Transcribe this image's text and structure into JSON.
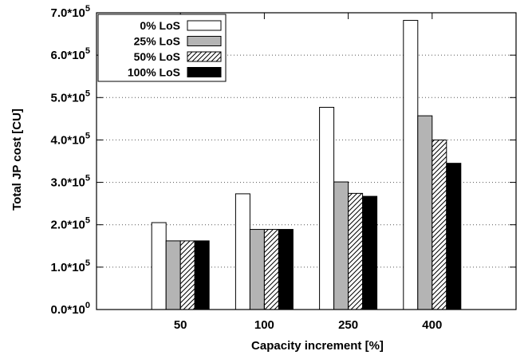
{
  "chart_data": {
    "type": "bar",
    "title": "",
    "xlabel": "Capacity increment [%]",
    "ylabel": "Total JP cost [CU]",
    "categories": [
      "50",
      "100",
      "250",
      "400"
    ],
    "ylim": [
      0,
      700000
    ],
    "yticks": [
      {
        "value": 0,
        "mantissa": "0.0",
        "exp": "0"
      },
      {
        "value": 100000,
        "mantissa": "1.0",
        "exp": "5"
      },
      {
        "value": 200000,
        "mantissa": "2.0",
        "exp": "5"
      },
      {
        "value": 300000,
        "mantissa": "3.0",
        "exp": "5"
      },
      {
        "value": 400000,
        "mantissa": "4.0",
        "exp": "5"
      },
      {
        "value": 500000,
        "mantissa": "5.0",
        "exp": "5"
      },
      {
        "value": 600000,
        "mantissa": "6.0",
        "exp": "5"
      },
      {
        "value": 700000,
        "mantissa": "7.0",
        "exp": "5"
      }
    ],
    "grid": "horizontal dotted",
    "legend_position": "top-left",
    "series": [
      {
        "name": "0% LoS",
        "fill": "white",
        "values": [
          205000,
          273000,
          477000,
          682000
        ]
      },
      {
        "name": "25% LoS",
        "fill": "gray",
        "values": [
          162000,
          189000,
          301000,
          457000
        ]
      },
      {
        "name": "50% LoS",
        "fill": "hatch",
        "values": [
          162000,
          189000,
          274000,
          400000
        ]
      },
      {
        "name": "100% LoS",
        "fill": "black",
        "values": [
          162000,
          189000,
          267000,
          345000
        ]
      }
    ]
  }
}
